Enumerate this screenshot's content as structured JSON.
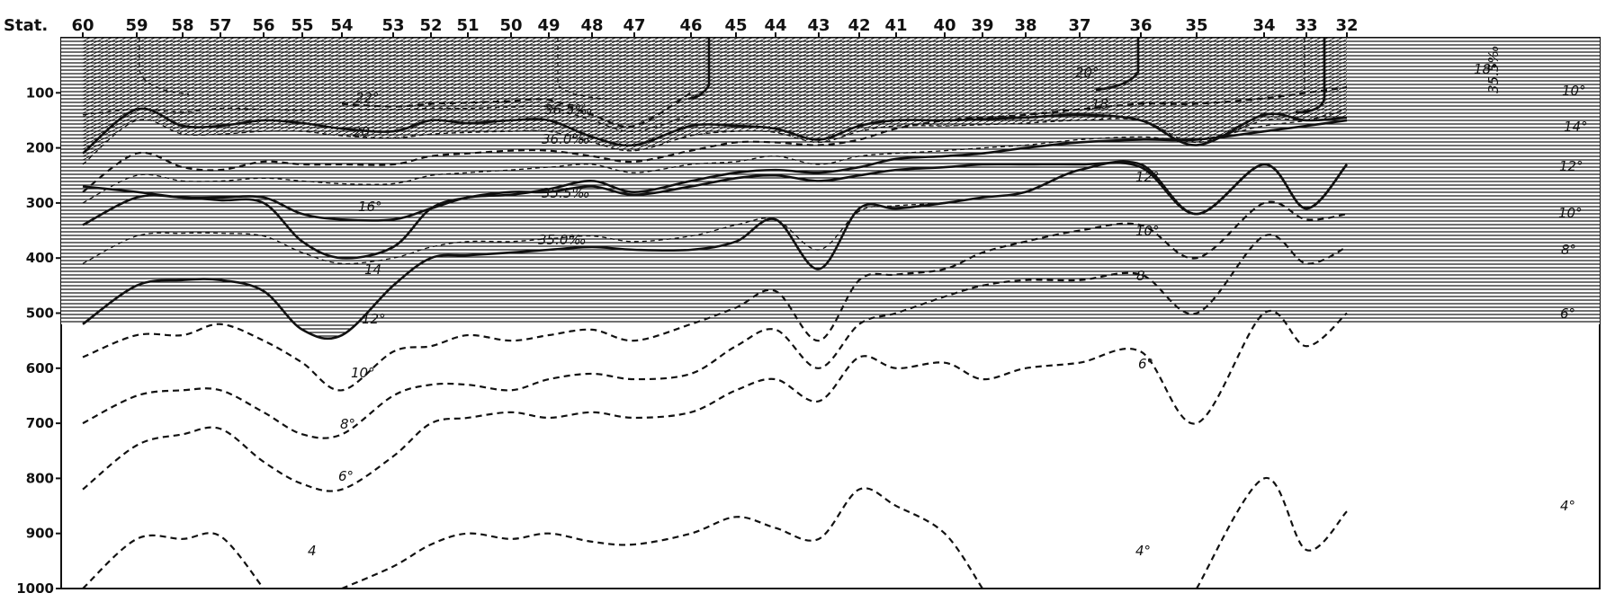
{
  "chart_data": {
    "type": "oceanographic-section",
    "x_axis_label": "Stat.",
    "stations": [
      "60",
      "59",
      "58",
      "57",
      "56",
      "55",
      "54",
      "53",
      "52",
      "51",
      "50",
      "49",
      "48",
      "47",
      "46",
      "45",
      "44",
      "43",
      "42",
      "41",
      "40",
      "39",
      "38",
      "37",
      "36",
      "35",
      "34",
      "33",
      "32"
    ],
    "depth_ticks": [
      "100",
      "200",
      "300",
      "400",
      "500",
      "600",
      "700",
      "800",
      "900",
      "1000"
    ],
    "ylim": [
      0,
      1000
    ],
    "y_reversed": true,
    "grid": false,
    "isotherms": [
      {
        "label": "22°",
        "style": "dashed",
        "depths": [
          null,
          null,
          null,
          null,
          null,
          null,
          120,
          125,
          120,
          118,
          115,
          113,
          140,
          160,
          100,
          null,
          null,
          null,
          null,
          null,
          null,
          null,
          null,
          null,
          null,
          null,
          null,
          null,
          null
        ]
      },
      {
        "label": "20",
        "style": "solid",
        "depths": [
          210,
          130,
          160,
          160,
          150,
          155,
          165,
          170,
          150,
          155,
          150,
          150,
          180,
          195,
          160,
          160,
          165,
          185,
          160,
          150,
          150,
          148,
          145,
          140,
          150,
          195,
          140,
          150,
          145
        ]
      },
      {
        "label": "18°",
        "style": "dashed",
        "depths": [
          280,
          210,
          235,
          240,
          225,
          230,
          230,
          230,
          215,
          210,
          205,
          205,
          215,
          225,
          205,
          190,
          190,
          195,
          185,
          165,
          150,
          145,
          140,
          130,
          120,
          120,
          110,
          100,
          90
        ]
      },
      {
        "label": "16°",
        "style": "solid",
        "depths": [
          270,
          280,
          290,
          290,
          290,
          320,
          330,
          330,
          310,
          290,
          285,
          275,
          260,
          280,
          260,
          245,
          240,
          245,
          235,
          220,
          215,
          210,
          200,
          190,
          185,
          185,
          170,
          160,
          150
        ]
      },
      {
        "label": "14",
        "style": "solid",
        "depths": [
          340,
          290,
          290,
          295,
          300,
          370,
          400,
          380,
          310,
          290,
          280,
          280,
          270,
          285,
          270,
          255,
          250,
          260,
          250,
          240,
          235,
          230,
          230,
          230,
          235,
          320,
          230,
          310,
          230
        ]
      },
      {
        "label": "12°",
        "style": "solid",
        "depths": [
          520,
          450,
          440,
          440,
          460,
          530,
          540,
          450,
          400,
          395,
          390,
          385,
          380,
          385,
          385,
          370,
          330,
          420,
          310,
          310,
          300,
          290,
          280,
          240,
          230,
          320,
          230,
          310,
          230
        ]
      },
      {
        "label": "10°",
        "style": "dashed",
        "depths": [
          580,
          540,
          540,
          520,
          550,
          590,
          640,
          570,
          560,
          540,
          550,
          540,
          530,
          550,
          520,
          490,
          460,
          550,
          440,
          430,
          420,
          390,
          370,
          350,
          340,
          400,
          300,
          330,
          320
        ]
      },
      {
        "label": "8",
        "style": "dashed",
        "depths": [
          700,
          650,
          640,
          640,
          680,
          720,
          720,
          650,
          630,
          630,
          640,
          620,
          610,
          620,
          610,
          560,
          530,
          600,
          520,
          500,
          470,
          450,
          440,
          440,
          430,
          500,
          360,
          410,
          380
        ]
      },
      {
        "label": "6°",
        "style": "dashed",
        "depths": [
          820,
          740,
          720,
          710,
          770,
          810,
          820,
          760,
          700,
          690,
          680,
          690,
          680,
          690,
          680,
          640,
          620,
          660,
          580,
          600,
          590,
          620,
          600,
          590,
          570,
          700,
          500,
          560,
          500
        ]
      },
      {
        "label": "4",
        "style": "dashed",
        "depths": [
          1000,
          910,
          910,
          905,
          1000,
          null,
          1000,
          960,
          920,
          900,
          910,
          900,
          915,
          920,
          900,
          870,
          890,
          910,
          820,
          850,
          900,
          1000,
          null,
          null,
          null,
          1000,
          800,
          930,
          860
        ]
      }
    ],
    "salinity_isolines": [
      {
        "label": "36.5‰",
        "depths": [
          140,
          130,
          135,
          128,
          130,
          132,
          130,
          130,
          128,
          128,
          126,
          126,
          150,
          170,
          140,
          null,
          null,
          null,
          null,
          null,
          null,
          null,
          null,
          null,
          null,
          null,
          null,
          null,
          null
        ]
      },
      {
        "label": "36.0‰",
        "depths": [
          230,
          150,
          175,
          175,
          170,
          170,
          178,
          182,
          175,
          172,
          170,
          170,
          190,
          205,
          178,
          170,
          172,
          190,
          170,
          160,
          160,
          158,
          155,
          150,
          150,
          190,
          150,
          150,
          145
        ]
      },
      {
        "label": "35.5‰",
        "depths": [
          300,
          250,
          260,
          260,
          255,
          260,
          265,
          265,
          250,
          245,
          240,
          235,
          230,
          245,
          230,
          225,
          215,
          230,
          215,
          210,
          205,
          200,
          195,
          185,
          180,
          185,
          160,
          150,
          130
        ]
      },
      {
        "label": "35.0‰",
        "depths": [
          410,
          360,
          355,
          355,
          360,
          390,
          410,
          400,
          380,
          370,
          370,
          365,
          360,
          370,
          360,
          340,
          330,
          385,
          315,
          305,
          300,
          290,
          280,
          240,
          230,
          320,
          230,
          310,
          230
        ]
      }
    ],
    "high_salinity_region": "above 36.0‰",
    "annotations": {
      "depth_upper_stations": [
        "18°",
        "35.5‰"
      ]
    }
  },
  "labels": {
    "stat": "Stat.",
    "iso_22": "22°",
    "iso_20": "20",
    "iso_20_upper": "20°",
    "iso_18": "18",
    "iso_16": "16°",
    "iso_14": "14",
    "iso_12": "12°",
    "iso_10": "10°",
    "iso_8": "8",
    "iso_8deg": "8°",
    "iso_6": "6°",
    "iso_4": "4",
    "iso_4deg": "4°",
    "sal_365": "36.5‰",
    "sal_360": "36.0‰",
    "sal_355": "35.5‰",
    "sal_350": "35.0‰",
    "right_10": "10°",
    "right_14": "14°",
    "right_12": "12°",
    "right_10b": "10°",
    "right_8": "8°",
    "right_6": "6°",
    "right_4": "4°",
    "mid_10": "10°",
    "mid_6": "6°",
    "station18": "18°",
    "station35": "35.5‰"
  }
}
